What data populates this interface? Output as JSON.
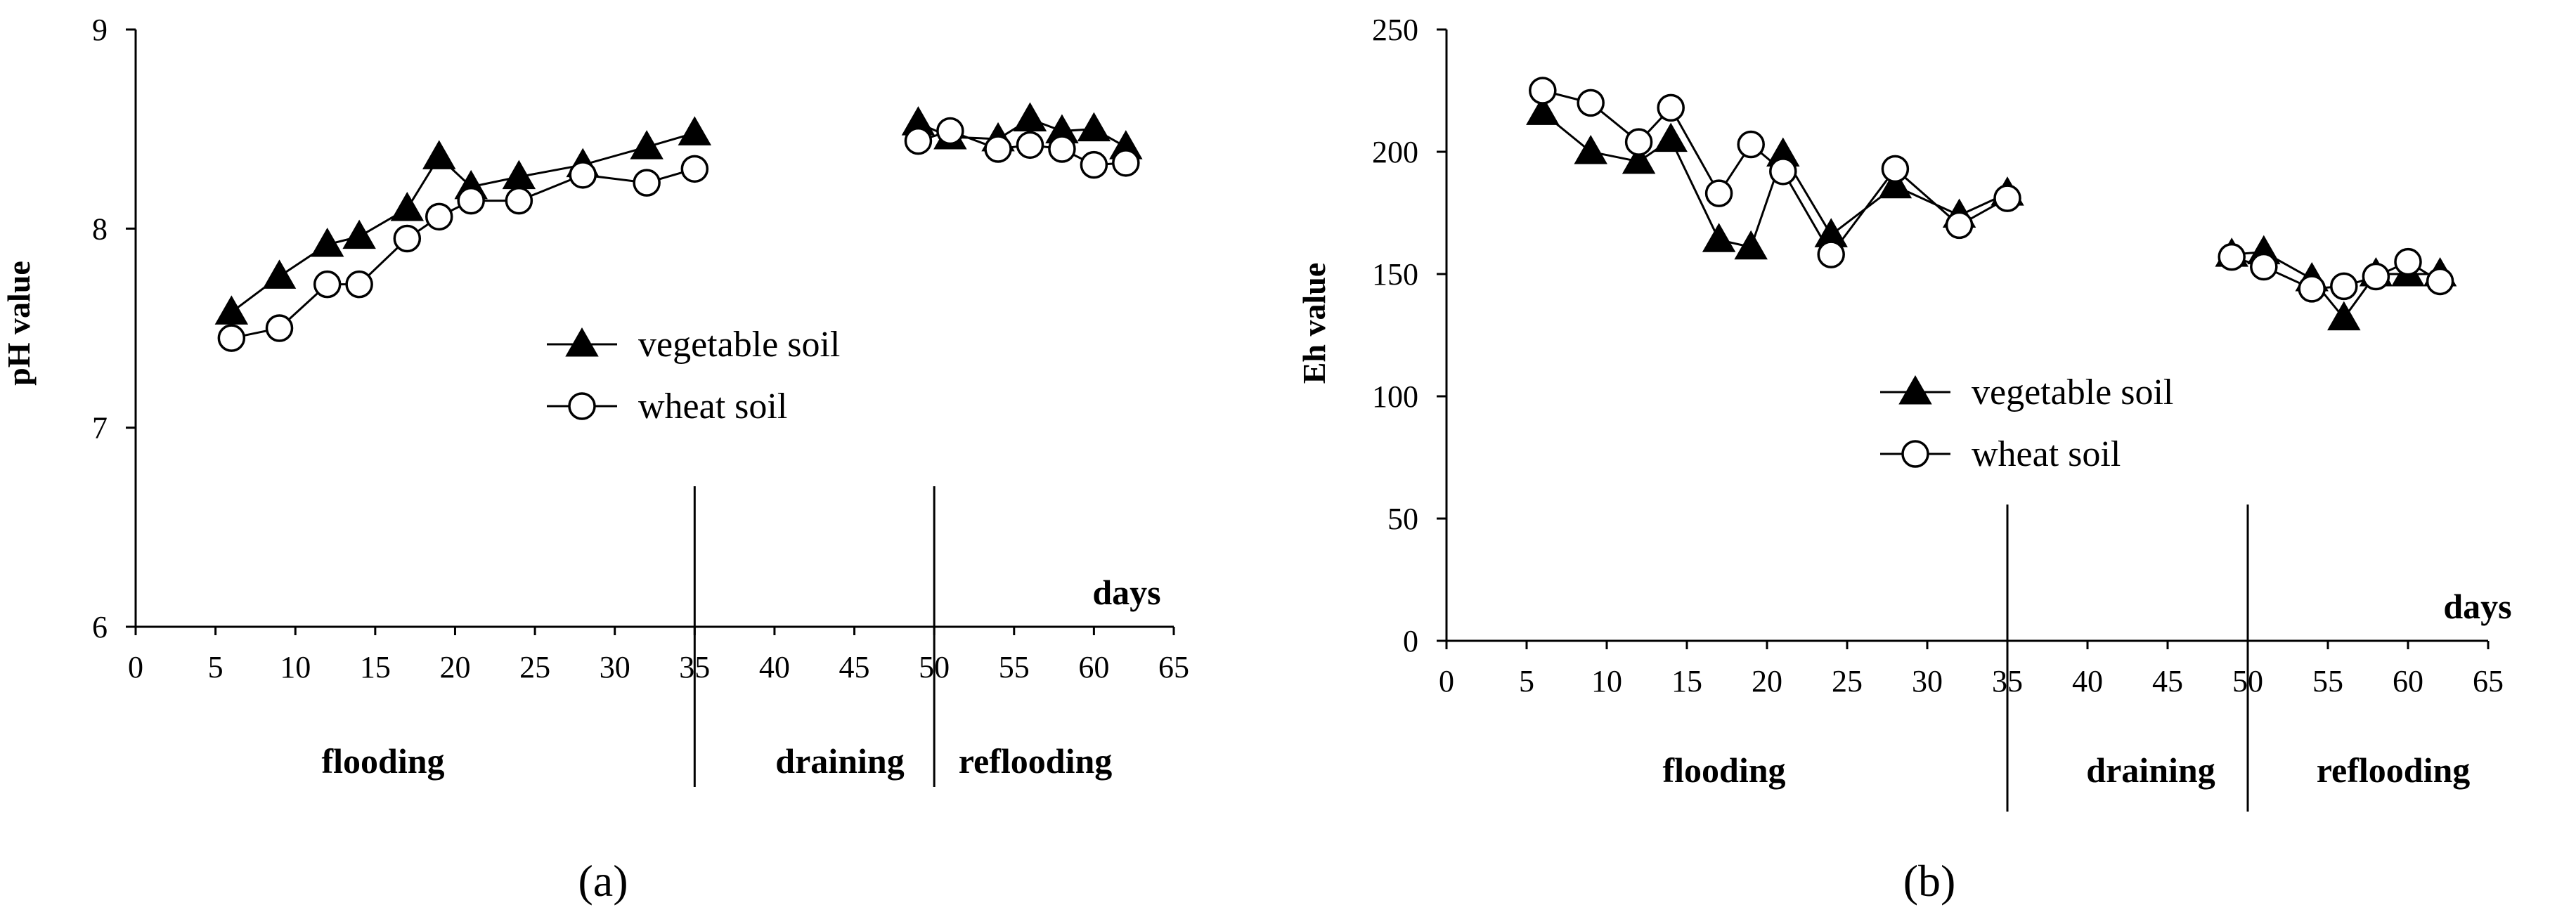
{
  "chart_data": [
    {
      "type": "line",
      "panel_label": "(a)",
      "ylabel": "pH value",
      "xlabel": "days",
      "xlim": [
        0,
        65
      ],
      "ylim": [
        6,
        9
      ],
      "xticks": [
        0,
        5,
        10,
        15,
        20,
        25,
        30,
        35,
        40,
        45,
        50,
        55,
        60,
        65
      ],
      "yticks": [
        6,
        7,
        8,
        9
      ],
      "phase_dividers": [
        35,
        50
      ],
      "phases": [
        "flooding",
        "draining",
        "reflooding"
      ],
      "series": [
        {
          "name": "vegetable soil",
          "marker": "triangle-filled",
          "segments": [
            {
              "x": [
                6,
                9,
                12,
                14,
                17,
                19,
                21,
                24,
                28,
                32,
                35
              ],
              "y": [
                7.58,
                7.76,
                7.92,
                7.96,
                8.1,
                8.36,
                8.21,
                8.26,
                8.32,
                8.41,
                8.48
              ]
            },
            {
              "x": [
                49,
                51,
                54,
                56,
                58,
                60,
                62
              ],
              "y": [
                8.53,
                8.46,
                8.45,
                8.55,
                8.49,
                8.5,
                8.41
              ]
            }
          ]
        },
        {
          "name": "wheat soil",
          "marker": "circle-open",
          "segments": [
            {
              "x": [
                6,
                9,
                12,
                14,
                17,
                19,
                21,
                24,
                28,
                32,
                35
              ],
              "y": [
                7.45,
                7.5,
                7.72,
                7.72,
                7.95,
                8.06,
                8.14,
                8.14,
                8.27,
                8.23,
                8.3
              ]
            },
            {
              "x": [
                49,
                51,
                54,
                56,
                58,
                60,
                62
              ],
              "y": [
                8.44,
                8.49,
                8.4,
                8.42,
                8.4,
                8.32,
                8.33
              ]
            }
          ]
        }
      ]
    },
    {
      "type": "line",
      "panel_label": "(b)",
      "ylabel": "Eh value",
      "xlabel": "days",
      "xlim": [
        0,
        65
      ],
      "ylim": [
        0,
        250
      ],
      "xticks": [
        0,
        5,
        10,
        15,
        20,
        25,
        30,
        35,
        40,
        45,
        50,
        55,
        60,
        65
      ],
      "yticks": [
        0,
        50,
        100,
        150,
        200,
        250
      ],
      "phase_dividers": [
        35,
        50
      ],
      "phases": [
        "flooding",
        "draining",
        "reflooding"
      ],
      "series": [
        {
          "name": "vegetable soil",
          "marker": "triangle-filled",
          "segments": [
            {
              "x": [
                6,
                9,
                12,
                14,
                17,
                19,
                21,
                24,
                28,
                32,
                35
              ],
              "y": [
                216,
                200,
                196,
                205,
                164,
                161,
                199,
                166,
                186,
                174,
                183
              ]
            },
            {
              "x": [
                49,
                51,
                54,
                56,
                58,
                60,
                62
              ],
              "y": [
                158,
                159,
                148,
                132,
                150,
                150,
                150
              ]
            }
          ]
        },
        {
          "name": "wheat soil",
          "marker": "circle-open",
          "segments": [
            {
              "x": [
                6,
                9,
                12,
                14,
                17,
                19,
                21,
                24,
                28,
                32,
                35
              ],
              "y": [
                225,
                220,
                204,
                218,
                183,
                203,
                192,
                158,
                193,
                170,
                181
              ]
            },
            {
              "x": [
                49,
                51,
                54,
                56,
                58,
                60,
                62
              ],
              "y": [
                157,
                153,
                144,
                145,
                149,
                155,
                147
              ]
            }
          ]
        }
      ]
    }
  ]
}
